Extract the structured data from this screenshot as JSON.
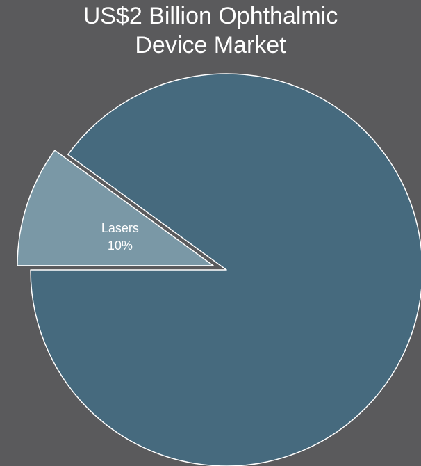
{
  "chart_data": {
    "type": "pie",
    "title_lines": [
      "US$2 Billion Ophthalmic",
      "Device Market"
    ],
    "slices": [
      {
        "label": "Lasers",
        "value": 10,
        "value_label": "10%",
        "color": "#7a98a6",
        "exploded": true
      },
      {
        "label": "",
        "value": 90,
        "value_label": "",
        "color": "#466a7e",
        "exploded": false
      }
    ],
    "start_angle_deg": 180,
    "background_color": "#5a5a5c",
    "edge_color": "#ffffff"
  }
}
